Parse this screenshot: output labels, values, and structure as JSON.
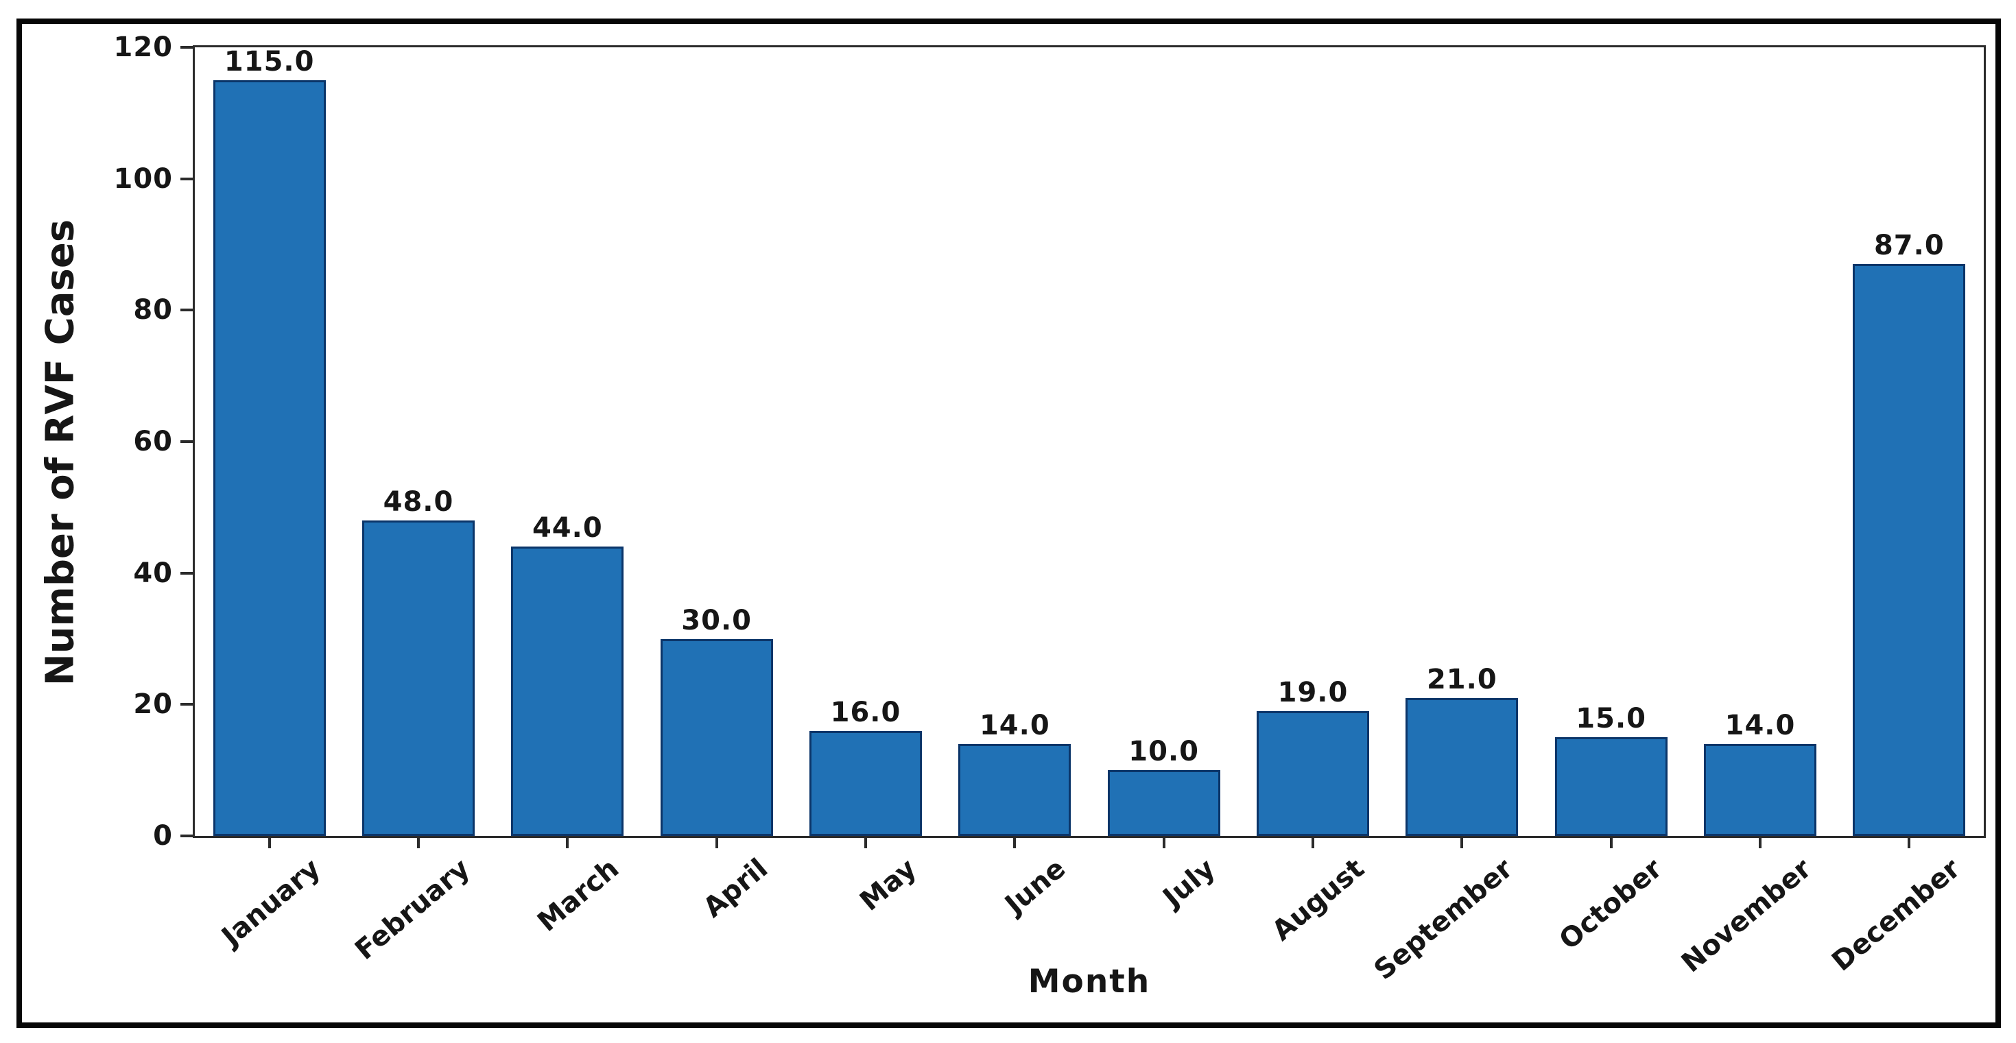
{
  "figure": {
    "background": "#ffffff",
    "border_color": "#070707"
  },
  "chart_data": {
    "type": "bar",
    "title": "",
    "xlabel": "Month",
    "ylabel": "Number of RVF Cases",
    "categories": [
      "January",
      "February",
      "March",
      "April",
      "May",
      "June",
      "July",
      "August",
      "September",
      "October",
      "November",
      "December"
    ],
    "values": [
      115,
      48,
      44,
      30,
      16,
      14,
      10,
      19,
      21,
      15,
      14,
      87
    ],
    "bar_labels": [
      "115.0",
      "48.0",
      "44.0",
      "30.0",
      "16.0",
      "14.0",
      "10.0",
      "19.0",
      "21.0",
      "15.0",
      "14.0",
      "87.0"
    ],
    "ylim": [
      0,
      120
    ],
    "yticks": [
      0,
      20,
      40,
      60,
      80,
      100,
      120
    ],
    "xtick_rotation_deg": -40,
    "grid": false,
    "legend": null,
    "colors": {
      "bar_fill": "#2071b5",
      "bar_edge": "#0b3569",
      "spine": "#2b2b2b",
      "text": "#161616"
    }
  }
}
